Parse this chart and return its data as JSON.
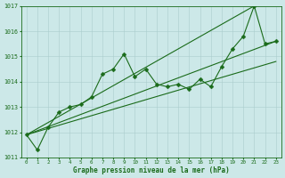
{
  "xlabel": "Graphe pression niveau de la mer (hPa)",
  "x": [
    0,
    1,
    2,
    3,
    4,
    5,
    6,
    7,
    8,
    9,
    10,
    11,
    12,
    13,
    14,
    15,
    16,
    17,
    18,
    19,
    20,
    21,
    22,
    23
  ],
  "series": [
    {
      "y": [
        1011.9,
        1011.3,
        1012.2,
        1012.8,
        1013.0,
        1013.1,
        1013.4,
        1014.3,
        1014.5,
        1015.1,
        1014.2,
        1014.5,
        1013.9,
        1013.8,
        1013.9,
        1013.7,
        1014.1,
        1013.8,
        1014.6,
        1015.3,
        1015.8,
        1017.0,
        1015.5,
        1015.6
      ],
      "marker": true
    },
    {
      "y": [
        1011.9,
        null,
        null,
        1012.8,
        null,
        null,
        null,
        null,
        null,
        null,
        null,
        null,
        null,
        null,
        null,
        null,
        null,
        null,
        null,
        null,
        null,
        1017.0,
        null,
        null
      ],
      "marker": false
    },
    {
      "y": [
        1011.9,
        null,
        null,
        1012.8,
        null,
        null,
        1013.4,
        null,
        null,
        null,
        null,
        null,
        null,
        null,
        1013.9,
        null,
        null,
        null,
        1014.6,
        null,
        null,
        null,
        1015.5,
        1015.6
      ],
      "marker": true
    },
    {
      "y": [
        1011.9,
        null,
        null,
        1012.8,
        null,
        null,
        null,
        null,
        null,
        null,
        null,
        null,
        null,
        null,
        null,
        null,
        null,
        null,
        null,
        null,
        1015.8,
        null,
        null,
        null
      ],
      "marker": false
    }
  ],
  "line_color": "#1a6b1a",
  "marker_symbol": "D",
  "marker_size": 2.5,
  "background_color": "#cce8e8",
  "grid_color": "#aacccc",
  "text_color": "#1a6b1a",
  "ylim": [
    1011,
    1017
  ],
  "yticks": [
    1011,
    1012,
    1013,
    1014,
    1015,
    1016,
    1017
  ],
  "xticks": [
    0,
    1,
    2,
    3,
    4,
    5,
    6,
    7,
    8,
    9,
    10,
    11,
    12,
    13,
    14,
    15,
    16,
    17,
    18,
    19,
    20,
    21,
    22,
    23
  ],
  "figwidth": 3.2,
  "figheight": 2.0,
  "dpi": 100
}
